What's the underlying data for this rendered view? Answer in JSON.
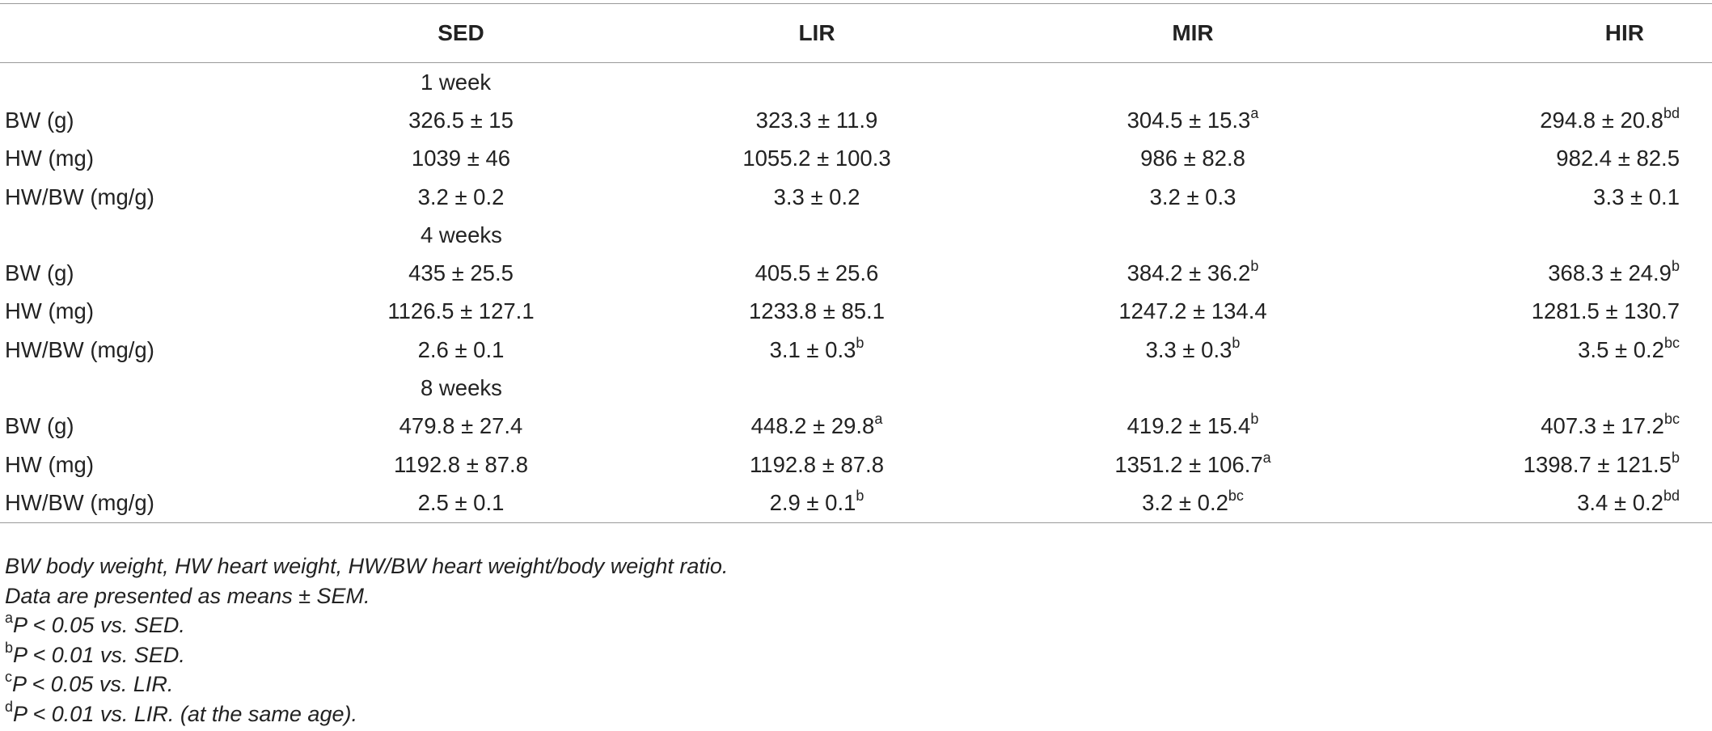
{
  "columns": [
    "",
    "SED",
    "LIR",
    "MIR",
    "HIR"
  ],
  "sections": [
    {
      "label": "1 week",
      "rows": [
        {
          "label": "BW (g)",
          "cells": [
            {
              "v": "326.5 ± 15",
              "s": ""
            },
            {
              "v": "323.3 ± 11.9",
              "s": ""
            },
            {
              "v": "304.5 ± 15.3",
              "s": "a"
            },
            {
              "v": "294.8 ± 20.8",
              "s": "bd"
            }
          ]
        },
        {
          "label": "HW (mg)",
          "cells": [
            {
              "v": "1039 ± 46",
              "s": ""
            },
            {
              "v": "1055.2 ± 100.3",
              "s": ""
            },
            {
              "v": "986 ± 82.8",
              "s": ""
            },
            {
              "v": "982.4 ± 82.5",
              "s": ""
            }
          ]
        },
        {
          "label": "HW/BW (mg/g)",
          "cells": [
            {
              "v": "3.2 ± 0.2",
              "s": ""
            },
            {
              "v": "3.3 ± 0.2",
              "s": ""
            },
            {
              "v": "3.2 ± 0.3",
              "s": ""
            },
            {
              "v": "3.3 ± 0.1",
              "s": ""
            }
          ]
        }
      ]
    },
    {
      "label": "4 weeks",
      "rows": [
        {
          "label": "BW (g)",
          "cells": [
            {
              "v": "435 ± 25.5",
              "s": ""
            },
            {
              "v": "405.5 ± 25.6",
              "s": ""
            },
            {
              "v": "384.2 ± 36.2",
              "s": "b"
            },
            {
              "v": "368.3 ± 24.9",
              "s": "b"
            }
          ]
        },
        {
          "label": "HW (mg)",
          "cells": [
            {
              "v": "1126.5 ± 127.1",
              "s": ""
            },
            {
              "v": "1233.8 ± 85.1",
              "s": ""
            },
            {
              "v": "1247.2 ± 134.4",
              "s": ""
            },
            {
              "v": "1281.5 ± 130.7",
              "s": ""
            }
          ]
        },
        {
          "label": "HW/BW (mg/g)",
          "cells": [
            {
              "v": "2.6 ± 0.1",
              "s": ""
            },
            {
              "v": "3.1 ± 0.3",
              "s": "b"
            },
            {
              "v": "3.3 ± 0.3",
              "s": "b"
            },
            {
              "v": "3.5 ± 0.2",
              "s": "bc"
            }
          ]
        }
      ]
    },
    {
      "label": "8 weeks",
      "rows": [
        {
          "label": "BW (g)",
          "cells": [
            {
              "v": "479.8 ± 27.4",
              "s": ""
            },
            {
              "v": "448.2 ± 29.8",
              "s": "a"
            },
            {
              "v": "419.2 ± 15.4",
              "s": "b"
            },
            {
              "v": "407.3 ± 17.2",
              "s": "bc"
            }
          ]
        },
        {
          "label": "HW (mg)",
          "cells": [
            {
              "v": "1192.8 ± 87.8",
              "s": ""
            },
            {
              "v": "1192.8 ± 87.8",
              "s": ""
            },
            {
              "v": "1351.2 ± 106.7",
              "s": "a"
            },
            {
              "v": "1398.7 ± 121.5",
              "s": "b"
            }
          ]
        },
        {
          "label": "HW/BW (mg/g)",
          "cells": [
            {
              "v": "2.5 ± 0.1",
              "s": ""
            },
            {
              "v": "2.9 ± 0.1",
              "s": "b"
            },
            {
              "v": "3.2 ± 0.2",
              "s": "bc"
            },
            {
              "v": "3.4 ± 0.2",
              "s": "bd"
            }
          ]
        }
      ]
    }
  ],
  "footnotes": [
    {
      "sup": "",
      "text": "BW body weight, HW heart weight, HW/BW heart weight/body weight ratio."
    },
    {
      "sup": "",
      "text": "Data are presented as means ± SEM."
    },
    {
      "sup": "a",
      "text": "P < 0.05 vs. SED."
    },
    {
      "sup": "b",
      "text": "P < 0.01 vs. SED."
    },
    {
      "sup": "c",
      "text": "P < 0.05 vs. LIR."
    },
    {
      "sup": "d",
      "text": "P < 0.01 vs. LIR. (at the same age)."
    }
  ]
}
